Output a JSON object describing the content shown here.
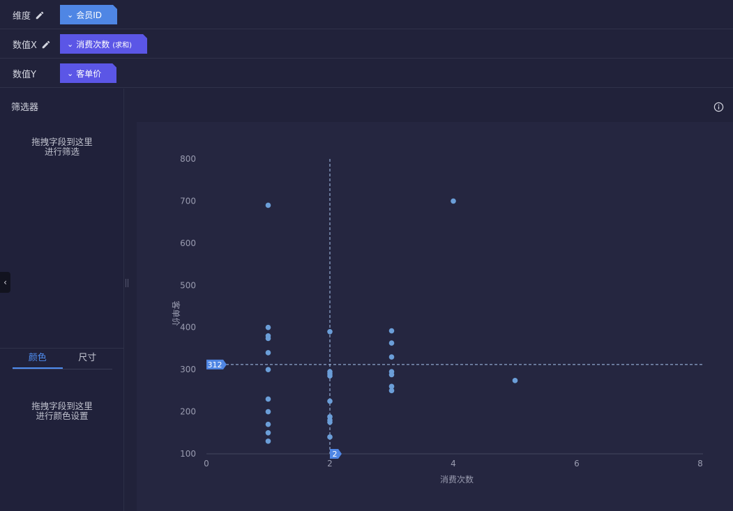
{
  "shelves": {
    "dimension": {
      "label": "维度",
      "field": "会员ID"
    },
    "value_x": {
      "label": "数值X",
      "field": "消费次数",
      "agg": "(求和)"
    },
    "value_y": {
      "label": "数值Y",
      "field": "客单价"
    }
  },
  "left_panel": {
    "filter_title": "筛选器",
    "filter_hint_line1": "拖拽字段到这里",
    "filter_hint_line2": "进行筛选",
    "tabs": [
      "颜色",
      "尺寸"
    ],
    "color_hint_line1": "拖拽字段到这里",
    "color_hint_line2": "进行颜色设置"
  },
  "colors": {
    "dimension_pill": "#4f86e4",
    "measure_pill": "#5b56e6",
    "point": "#6b9ed8",
    "crosshair": "#a9c6ef",
    "marker": "#4f86e4"
  },
  "chart_data": {
    "type": "scatter",
    "title": "",
    "xlabel": "消费次数",
    "ylabel": "客单价",
    "xlim": [
      0,
      8
    ],
    "ylim": [
      100,
      800
    ],
    "x_ticks": [
      0,
      2,
      4,
      6,
      8
    ],
    "y_ticks": [
      100,
      200,
      300,
      400,
      500,
      600,
      700,
      800
    ],
    "points": [
      {
        "x": 1,
        "y": 690
      },
      {
        "x": 1,
        "y": 400
      },
      {
        "x": 1,
        "y": 380
      },
      {
        "x": 1,
        "y": 374
      },
      {
        "x": 1,
        "y": 340
      },
      {
        "x": 1,
        "y": 300
      },
      {
        "x": 1,
        "y": 230
      },
      {
        "x": 1,
        "y": 200
      },
      {
        "x": 1,
        "y": 170
      },
      {
        "x": 1,
        "y": 150
      },
      {
        "x": 1,
        "y": 130
      },
      {
        "x": 2,
        "y": 390
      },
      {
        "x": 2,
        "y": 295
      },
      {
        "x": 2,
        "y": 290
      },
      {
        "x": 2,
        "y": 285
      },
      {
        "x": 2,
        "y": 225
      },
      {
        "x": 2,
        "y": 188
      },
      {
        "x": 2,
        "y": 180
      },
      {
        "x": 2,
        "y": 175
      },
      {
        "x": 2,
        "y": 140
      },
      {
        "x": 3,
        "y": 392
      },
      {
        "x": 3,
        "y": 363
      },
      {
        "x": 3,
        "y": 330
      },
      {
        "x": 3,
        "y": 295
      },
      {
        "x": 3,
        "y": 288
      },
      {
        "x": 3,
        "y": 260
      },
      {
        "x": 3,
        "y": 250
      },
      {
        "x": 4,
        "y": 700
      },
      {
        "x": 5,
        "y": 274
      }
    ],
    "crosshair": {
      "x": 2,
      "y": 312,
      "x_label": "2",
      "y_label": "312"
    }
  }
}
